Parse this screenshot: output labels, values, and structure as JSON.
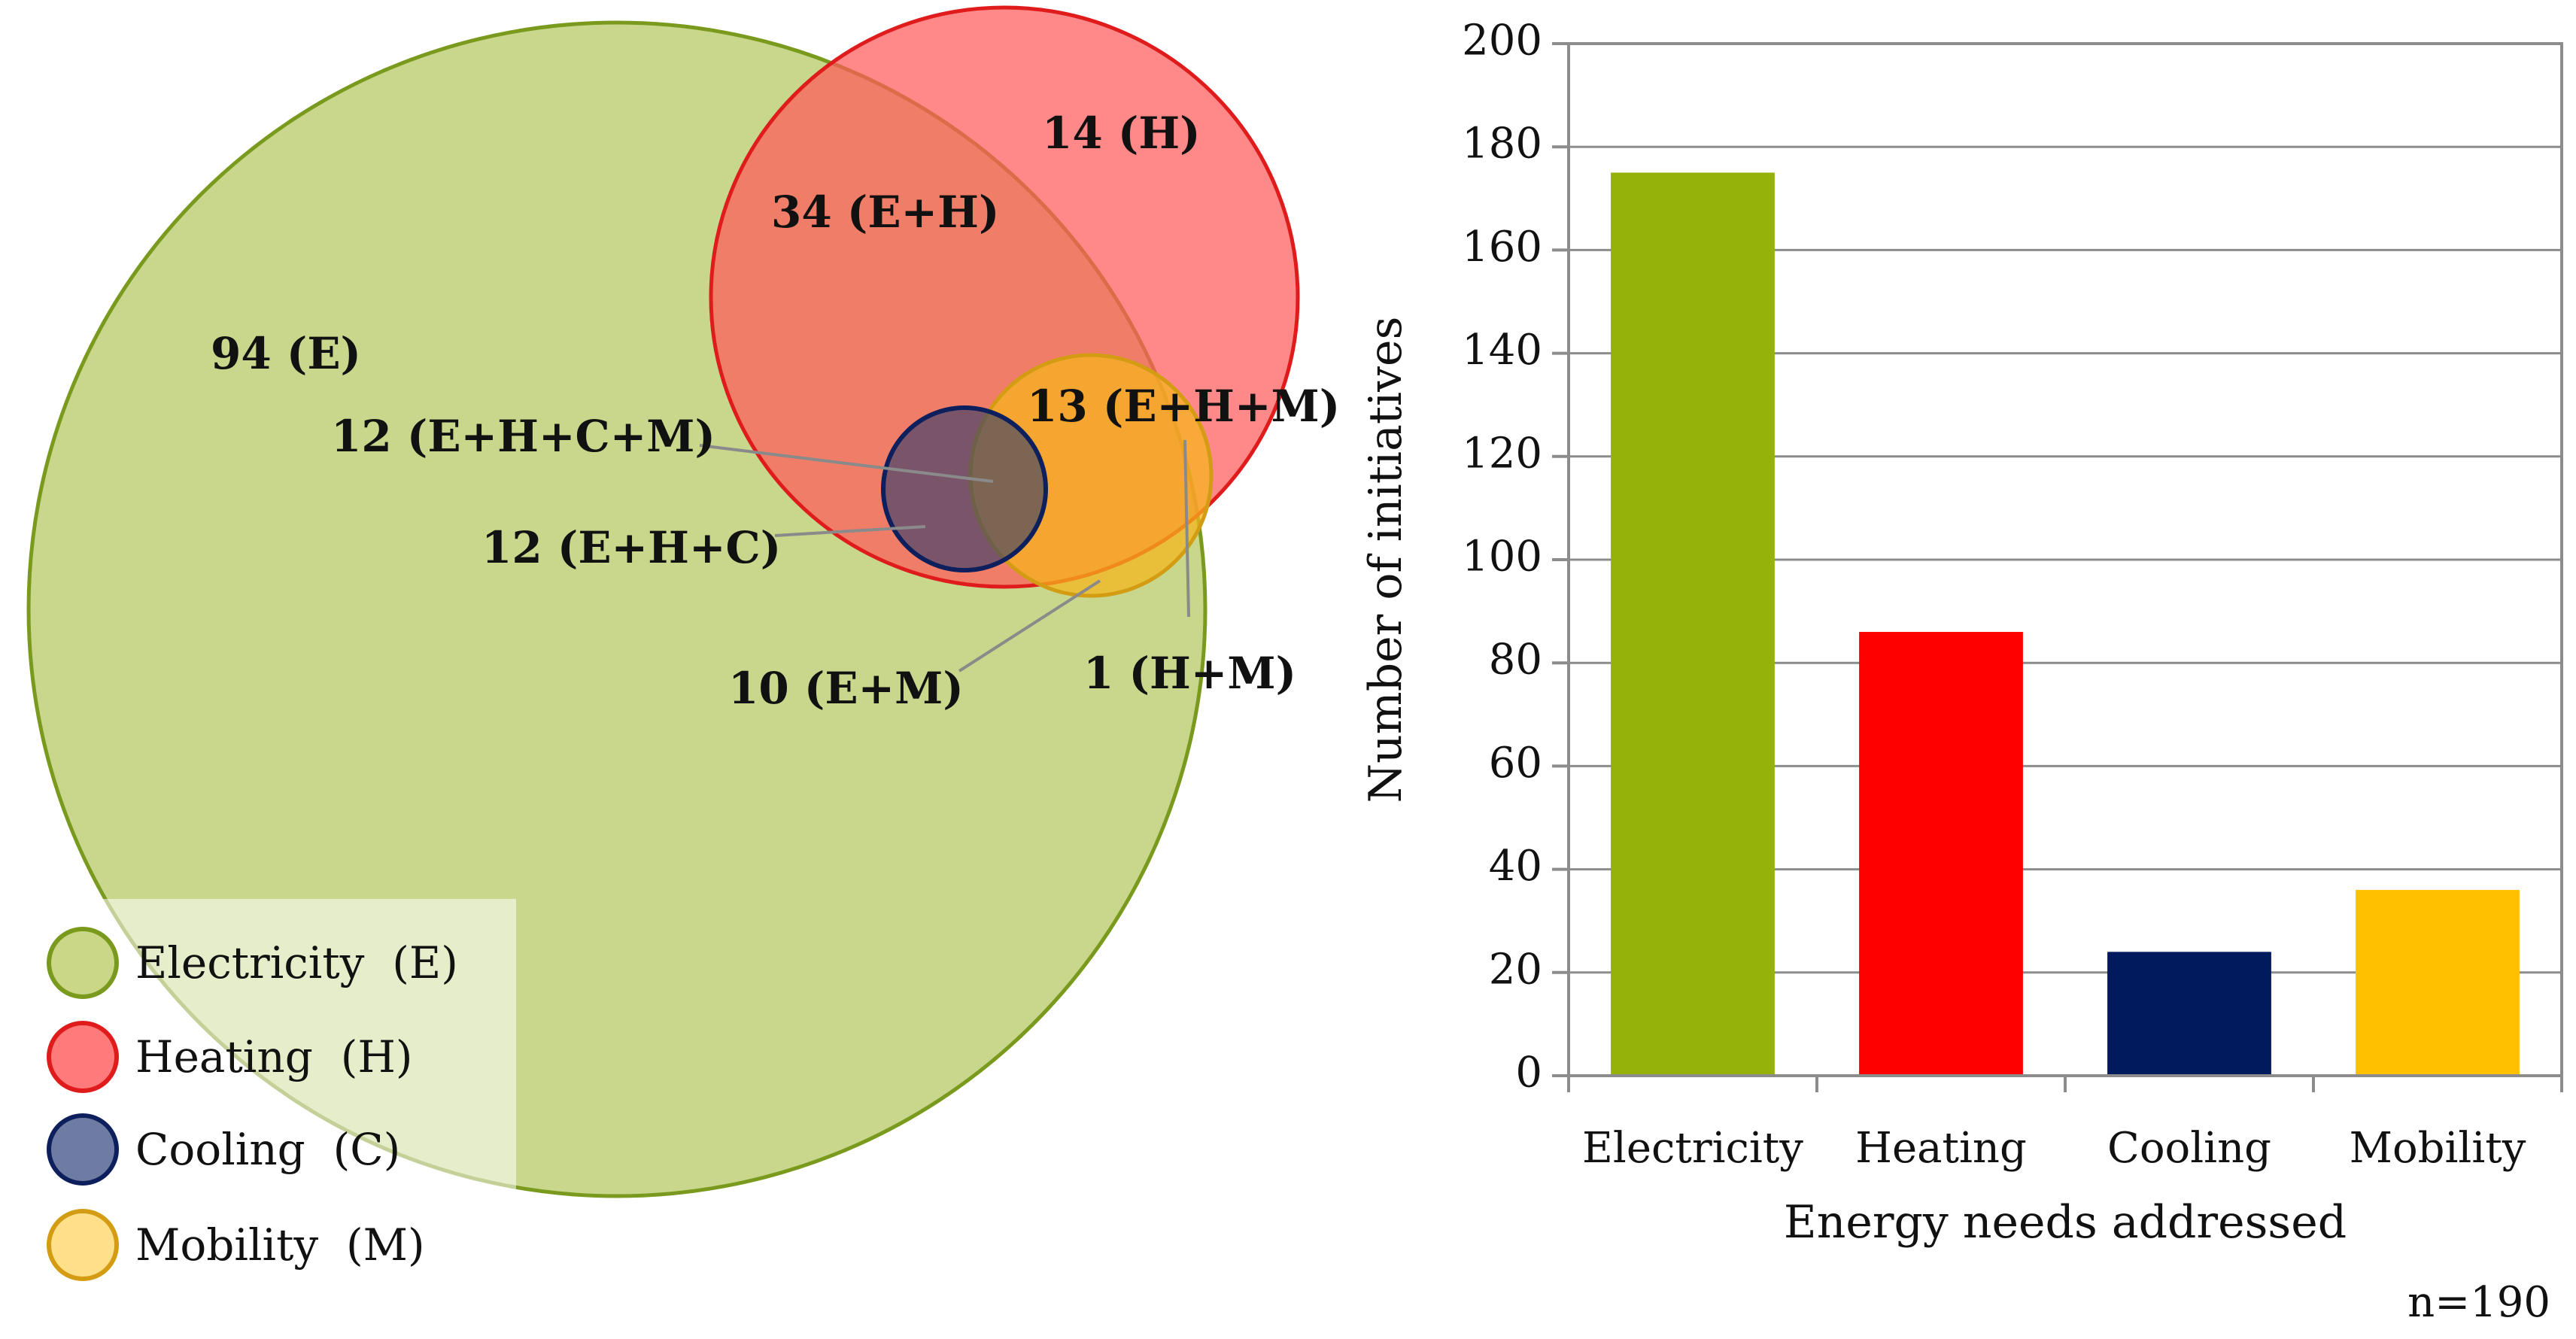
{
  "venn": {
    "sets": [
      {
        "key": "E",
        "legend": "Electricity  (E)",
        "fill": "#c9d787",
        "stroke": "#7a9a1e"
      },
      {
        "key": "H",
        "legend": "Heating  (H)",
        "fill": "#ff6666",
        "stroke": "#e01b1b"
      },
      {
        "key": "C",
        "legend": "Cooling  (C)",
        "fill": "#56648a",
        "stroke": "#0d1f5c"
      },
      {
        "key": "M",
        "legend": "Mobility  (M)",
        "fill": "#f5b51a",
        "stroke": "#d39c12"
      }
    ],
    "regions": [
      {
        "label": "94 (E)",
        "count": 94
      },
      {
        "label": "14 (H)",
        "count": 14
      },
      {
        "label": "34 (E+H)",
        "count": 34
      },
      {
        "label": "13 (E+H+M)",
        "count": 13
      },
      {
        "label": "12 (E+H+C+M)",
        "count": 12
      },
      {
        "label": "12 (E+H+C)",
        "count": 12
      },
      {
        "label": "10 (E+M)",
        "count": 10
      },
      {
        "label": "1 (H+M)",
        "count": 1
      }
    ]
  },
  "chart_data": {
    "type": "bar",
    "categories": [
      "Electricity",
      "Heating",
      "Cooling",
      "Mobility"
    ],
    "values": [
      175,
      86,
      24,
      36
    ],
    "colors": [
      "#95b20b",
      "#ff0000",
      "#001a5e",
      "#ffc000"
    ],
    "title": "",
    "xlabel": "Energy needs addressed",
    "ylabel": "Number of initiatives",
    "ylim": [
      0,
      200
    ],
    "yticks": [
      0,
      20,
      40,
      60,
      80,
      100,
      120,
      140,
      160,
      180,
      200
    ],
    "grid": true,
    "annotation": "n=190"
  }
}
